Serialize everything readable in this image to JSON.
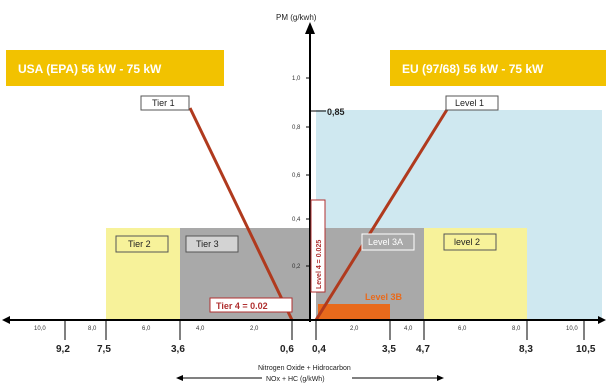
{
  "colors": {
    "banner": "#f2c200",
    "light_blue": "#cfe8f0",
    "light_yellow": "#f7f29a",
    "gray": "#a9a9a9",
    "light_gray": "#d3d3d3",
    "tier_line": "#b03a1e",
    "orange": "#e86a1c",
    "axis": "#000000"
  },
  "banners": {
    "usa": "USA (EPA)   56 kW - 75 kW",
    "eu": "EU (97/68)   56 kW - 75 kW"
  },
  "y_axis": {
    "title": "PM (g/kwh)",
    "ticks": [
      "1,0",
      "0,8",
      "0,6",
      "0,4",
      "0,2"
    ],
    "value_085": "0,85"
  },
  "x_axis": {
    "left_small": [
      "10,0",
      "8,0",
      "6,0",
      "4,0",
      "2,0"
    ],
    "right_small": [
      "2,0",
      "4,0",
      "6,0",
      "8,0",
      "10,0"
    ],
    "left_big": [
      "9,2",
      "7,5",
      "3,6",
      "0,6"
    ],
    "right_big": [
      "0,4",
      "3,5",
      "4,7",
      "8,3",
      "10,5"
    ],
    "caption_line1": "Nitrogen Oxide + Hidrocarbon",
    "caption_line2": "NOx + HC (g/kWh)"
  },
  "labels": {
    "tier1": "Tier 1",
    "tier2": "Tier 2",
    "tier3": "Tier 3",
    "tier4": "Tier 4 = 0.02",
    "level1": "Level 1",
    "level2": "level 2",
    "level3a": "Level 3A",
    "level3b": "Level 3B",
    "level4": "Level 4 = 0.025"
  }
}
